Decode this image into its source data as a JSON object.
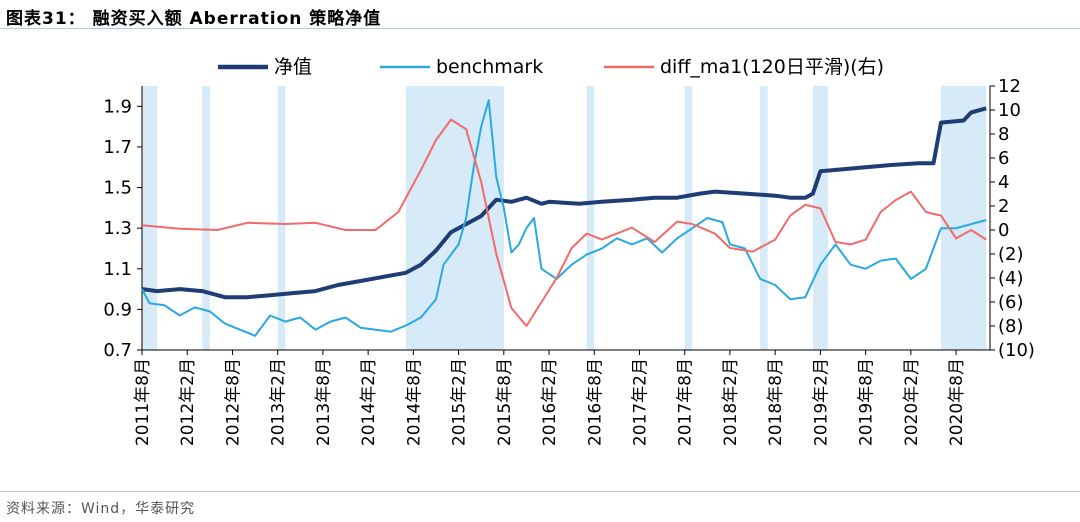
{
  "figure": {
    "title": "图表31：  融资买入额 Aberration 策略净值",
    "source": "资料来源：Wind，华泰研究"
  },
  "colors": {
    "nav": "#1f3c74",
    "benchmark": "#29a9e1",
    "diff": "#f26b6b",
    "signal_band": "#d6eaf7",
    "rule": "#b9c6dc"
  },
  "chart_data": {
    "type": "line",
    "title": "",
    "xlabel": "",
    "ylabel": "",
    "x_tick_labels": [
      "2011年8月",
      "2012年2月",
      "2012年8月",
      "2013年2月",
      "2013年8月",
      "2014年2月",
      "2014年8月",
      "2015年2月",
      "2015年8月",
      "2016年2月",
      "2016年8月",
      "2017年2月",
      "2017年8月",
      "2018年2月",
      "2018年8月",
      "2019年2月",
      "2019年8月",
      "2020年2月",
      "2020年8月"
    ],
    "x_range": [
      "2011-08",
      "2020-12"
    ],
    "y_left": {
      "lim": [
        0.7,
        2.0
      ],
      "ticks": [
        "0.7",
        "0.9",
        "1.1",
        "1.3",
        "1.5",
        "1.7",
        "1.9"
      ]
    },
    "y_right": {
      "lim": [
        -10,
        12
      ],
      "ticks": [
        "(10)",
        "(8)",
        "(6)",
        "(4)",
        "(2)",
        "0",
        "2",
        "4",
        "6",
        "8",
        "10",
        "12"
      ]
    },
    "grid": false,
    "legend_position": "top",
    "series": [
      {
        "name": "净值",
        "axis": "left",
        "points": [
          [
            "2011-08",
            1.0
          ],
          [
            "2011-10",
            0.99
          ],
          [
            "2012-01",
            1.0
          ],
          [
            "2012-04",
            0.99
          ],
          [
            "2012-07",
            0.96
          ],
          [
            "2012-10",
            0.96
          ],
          [
            "2013-01",
            0.97
          ],
          [
            "2013-04",
            0.98
          ],
          [
            "2013-07",
            0.99
          ],
          [
            "2013-10",
            1.02
          ],
          [
            "2014-01",
            1.04
          ],
          [
            "2014-04",
            1.06
          ],
          [
            "2014-07",
            1.08
          ],
          [
            "2014-09",
            1.12
          ],
          [
            "2014-11",
            1.19
          ],
          [
            "2015-01",
            1.28
          ],
          [
            "2015-03",
            1.32
          ],
          [
            "2015-05",
            1.36
          ],
          [
            "2015-07",
            1.44
          ],
          [
            "2015-09",
            1.43
          ],
          [
            "2015-11",
            1.45
          ],
          [
            "2016-01",
            1.42
          ],
          [
            "2016-02",
            1.43
          ],
          [
            "2016-06",
            1.42
          ],
          [
            "2016-09",
            1.43
          ],
          [
            "2017-01",
            1.44
          ],
          [
            "2017-04",
            1.45
          ],
          [
            "2017-07",
            1.45
          ],
          [
            "2017-10",
            1.47
          ],
          [
            "2017-12",
            1.48
          ],
          [
            "2018-04",
            1.47
          ],
          [
            "2018-08",
            1.46
          ],
          [
            "2018-10",
            1.45
          ],
          [
            "2018-12",
            1.45
          ],
          [
            "2019-01",
            1.47
          ],
          [
            "2019-02",
            1.58
          ],
          [
            "2019-05",
            1.59
          ],
          [
            "2019-08",
            1.6
          ],
          [
            "2019-11",
            1.61
          ],
          [
            "2020-03",
            1.62
          ],
          [
            "2020-05",
            1.62
          ],
          [
            "2020-06",
            1.82
          ],
          [
            "2020-09",
            1.83
          ],
          [
            "2020-10",
            1.87
          ],
          [
            "2020-12",
            1.89
          ]
        ]
      },
      {
        "name": "benchmark",
        "axis": "left",
        "points": [
          [
            "2011-08",
            1.0
          ],
          [
            "2011-09",
            0.93
          ],
          [
            "2011-11",
            0.92
          ],
          [
            "2012-01",
            0.87
          ],
          [
            "2012-03",
            0.91
          ],
          [
            "2012-05",
            0.89
          ],
          [
            "2012-07",
            0.83
          ],
          [
            "2012-09",
            0.8
          ],
          [
            "2012-11",
            0.77
          ],
          [
            "2013-01",
            0.87
          ],
          [
            "2013-03",
            0.84
          ],
          [
            "2013-05",
            0.86
          ],
          [
            "2013-07",
            0.8
          ],
          [
            "2013-09",
            0.84
          ],
          [
            "2013-11",
            0.86
          ],
          [
            "2014-01",
            0.81
          ],
          [
            "2014-03",
            0.8
          ],
          [
            "2014-05",
            0.79
          ],
          [
            "2014-07",
            0.82
          ],
          [
            "2014-09",
            0.86
          ],
          [
            "2014-11",
            0.95
          ],
          [
            "2014-12",
            1.12
          ],
          [
            "2015-02",
            1.22
          ],
          [
            "2015-03",
            1.35
          ],
          [
            "2015-04",
            1.6
          ],
          [
            "2015-05",
            1.8
          ],
          [
            "2015-06",
            1.93
          ],
          [
            "2015-07",
            1.55
          ],
          [
            "2015-08",
            1.4
          ],
          [
            "2015-09",
            1.18
          ],
          [
            "2015-10",
            1.22
          ],
          [
            "2015-11",
            1.3
          ],
          [
            "2015-12",
            1.35
          ],
          [
            "2016-01",
            1.1
          ],
          [
            "2016-03",
            1.05
          ],
          [
            "2016-05",
            1.12
          ],
          [
            "2016-07",
            1.17
          ],
          [
            "2016-09",
            1.2
          ],
          [
            "2016-11",
            1.25
          ],
          [
            "2017-01",
            1.22
          ],
          [
            "2017-03",
            1.25
          ],
          [
            "2017-05",
            1.18
          ],
          [
            "2017-07",
            1.25
          ],
          [
            "2017-09",
            1.3
          ],
          [
            "2017-11",
            1.35
          ],
          [
            "2018-01",
            1.33
          ],
          [
            "2018-02",
            1.22
          ],
          [
            "2018-04",
            1.2
          ],
          [
            "2018-06",
            1.05
          ],
          [
            "2018-08",
            1.02
          ],
          [
            "2018-10",
            0.95
          ],
          [
            "2018-12",
            0.96
          ],
          [
            "2019-02",
            1.12
          ],
          [
            "2019-04",
            1.22
          ],
          [
            "2019-06",
            1.12
          ],
          [
            "2019-08",
            1.1
          ],
          [
            "2019-10",
            1.14
          ],
          [
            "2019-12",
            1.15
          ],
          [
            "2020-02",
            1.05
          ],
          [
            "2020-04",
            1.1
          ],
          [
            "2020-06",
            1.3
          ],
          [
            "2020-08",
            1.3
          ],
          [
            "2020-10",
            1.32
          ],
          [
            "2020-12",
            1.34
          ]
        ]
      },
      {
        "name": "diff_ma1(120日平滑)(右)",
        "axis": "right",
        "points": [
          [
            "2011-08",
            0.4
          ],
          [
            "2012-01",
            0.1
          ],
          [
            "2012-06",
            0.0
          ],
          [
            "2012-10",
            0.6
          ],
          [
            "2013-03",
            0.5
          ],
          [
            "2013-07",
            0.6
          ],
          [
            "2013-11",
            0.0
          ],
          [
            "2014-03",
            0.0
          ],
          [
            "2014-06",
            1.5
          ],
          [
            "2014-09",
            5.0
          ],
          [
            "2014-11",
            7.5
          ],
          [
            "2015-01",
            9.2
          ],
          [
            "2015-03",
            8.4
          ],
          [
            "2015-05",
            4.0
          ],
          [
            "2015-07",
            -2.0
          ],
          [
            "2015-09",
            -6.5
          ],
          [
            "2015-11",
            -8.0
          ],
          [
            "2016-01",
            -6.0
          ],
          [
            "2016-03",
            -4.0
          ],
          [
            "2016-05",
            -1.5
          ],
          [
            "2016-07",
            -0.3
          ],
          [
            "2016-09",
            -0.8
          ],
          [
            "2017-01",
            0.2
          ],
          [
            "2017-04",
            -1.0
          ],
          [
            "2017-07",
            0.7
          ],
          [
            "2017-09",
            0.5
          ],
          [
            "2017-12",
            -0.3
          ],
          [
            "2018-02",
            -1.5
          ],
          [
            "2018-05",
            -1.8
          ],
          [
            "2018-08",
            -0.8
          ],
          [
            "2018-10",
            1.2
          ],
          [
            "2018-12",
            2.1
          ],
          [
            "2019-02",
            1.8
          ],
          [
            "2019-04",
            -1.0
          ],
          [
            "2019-06",
            -1.2
          ],
          [
            "2019-08",
            -0.8
          ],
          [
            "2019-10",
            1.5
          ],
          [
            "2019-12",
            2.5
          ],
          [
            "2020-02",
            3.2
          ],
          [
            "2020-04",
            1.5
          ],
          [
            "2020-06",
            1.2
          ],
          [
            "2020-08",
            -0.7
          ],
          [
            "2020-10",
            0.0
          ],
          [
            "2020-12",
            -0.8
          ]
        ]
      }
    ],
    "signal_periods": [
      [
        "2011-08",
        "2011-10"
      ],
      [
        "2012-04",
        "2012-05"
      ],
      [
        "2013-02",
        "2013-03"
      ],
      [
        "2014-07",
        "2015-08"
      ],
      [
        "2016-07",
        "2016-08"
      ],
      [
        "2017-08",
        "2017-09"
      ],
      [
        "2018-06",
        "2018-07"
      ],
      [
        "2019-01",
        "2019-03"
      ],
      [
        "2020-06",
        "2020-12"
      ]
    ]
  }
}
